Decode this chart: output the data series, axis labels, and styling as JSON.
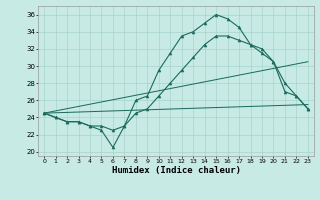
{
  "xlabel": "Humidex (Indice chaleur)",
  "bg_color": "#c8eae4",
  "grid_color": "#a8d4cc",
  "line_color": "#1a6b5e",
  "xlim": [
    -0.5,
    23.5
  ],
  "ylim": [
    19.5,
    37.0
  ],
  "xticks": [
    0,
    1,
    2,
    3,
    4,
    5,
    6,
    7,
    8,
    9,
    10,
    11,
    12,
    13,
    14,
    15,
    16,
    17,
    18,
    19,
    20,
    21,
    22,
    23
  ],
  "yticks": [
    20,
    22,
    24,
    26,
    28,
    30,
    32,
    34,
    36
  ],
  "series1_x": [
    0,
    1,
    2,
    3,
    4,
    5,
    6,
    7,
    8,
    9,
    10,
    11,
    12,
    13,
    14,
    15,
    16,
    17,
    18,
    19,
    20,
    21,
    22,
    23
  ],
  "series1_y": [
    24.5,
    24.0,
    23.5,
    23.5,
    23.0,
    22.5,
    20.5,
    23.0,
    26.0,
    26.5,
    29.5,
    31.5,
    33.5,
    34.0,
    35.0,
    36.0,
    35.5,
    34.5,
    32.5,
    31.5,
    30.5,
    28.0,
    26.5,
    25.0
  ],
  "series2_x": [
    0,
    1,
    2,
    3,
    4,
    5,
    6,
    7,
    8,
    9,
    10,
    11,
    12,
    13,
    14,
    15,
    16,
    17,
    18,
    19,
    20,
    21,
    22,
    23
  ],
  "series2_y": [
    24.5,
    24.0,
    23.5,
    23.5,
    23.0,
    23.0,
    22.5,
    23.0,
    24.5,
    25.0,
    26.5,
    28.0,
    29.5,
    31.0,
    32.5,
    33.5,
    33.5,
    33.0,
    32.5,
    32.0,
    30.5,
    27.0,
    26.5,
    25.0
  ],
  "series3_x": [
    0,
    23
  ],
  "series3_y": [
    24.5,
    25.5
  ],
  "series4_x": [
    0,
    23
  ],
  "series4_y": [
    24.5,
    30.5
  ],
  "markersize": 2.2,
  "linewidth": 0.8
}
